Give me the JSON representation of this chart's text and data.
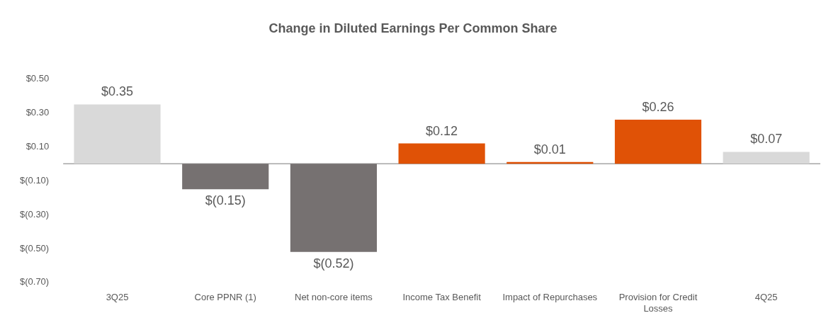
{
  "chart_data": {
    "type": "bar",
    "title": "Change in Diluted Earnings Per Common Share",
    "categories": [
      "3Q25",
      "Core PPNR (1)",
      "Net non-core items",
      "Income Tax Benefit",
      "Impact of Repurchases",
      "Provision for Credit Losses",
      "4Q25"
    ],
    "values": [
      0.35,
      -0.15,
      -0.52,
      0.12,
      0.01,
      0.26,
      0.07
    ],
    "colors": [
      "#d9d9d9",
      "#767171",
      "#767171",
      "#e05206",
      "#e05206",
      "#e05206",
      "#d9d9d9"
    ],
    "value_labels": [
      "$0.35",
      "$(0.15)",
      "$(0.52)",
      "$0.12",
      "$0.01",
      "$0.26",
      "$0.07"
    ],
    "ylim": [
      -0.7,
      0.5
    ],
    "yticks": [
      {
        "value": 0.5,
        "label": "$0.50"
      },
      {
        "value": 0.3,
        "label": "$0.30"
      },
      {
        "value": 0.1,
        "label": "$0.10"
      },
      {
        "value": -0.1,
        "label": "$(0.10)"
      },
      {
        "value": -0.3,
        "label": "$(0.30)"
      },
      {
        "value": -0.5,
        "label": "$(0.50)"
      },
      {
        "value": -0.7,
        "label": "$(0.70)"
      }
    ],
    "ref_lines": [
      {
        "axis": "y",
        "value": 0,
        "color": "#a6a6a6"
      }
    ],
    "grid": false,
    "legend": false
  }
}
